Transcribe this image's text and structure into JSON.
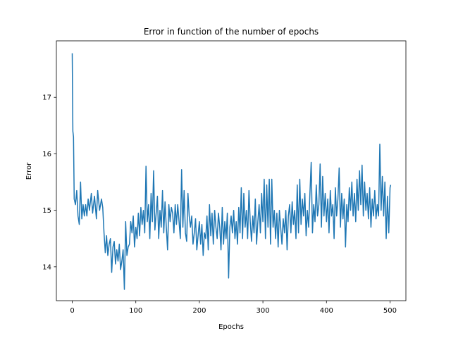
{
  "chart_data": {
    "type": "line",
    "title": "Error in function of the number of epochs",
    "xlabel": "Epochs",
    "ylabel": "Error",
    "xlim": [
      -25,
      525
    ],
    "ylim": [
      13.4,
      18.0
    ],
    "grid": false,
    "x_ticks": [
      0,
      100,
      200,
      300,
      400,
      500
    ],
    "y_ticks": [
      14,
      15,
      16,
      17
    ],
    "series_color": "#1f77b4",
    "series": [
      {
        "values": [
          [
            0,
            17.78
          ],
          [
            1,
            16.4
          ],
          [
            2,
            16.3
          ],
          [
            3,
            15.2
          ],
          [
            5,
            15.1
          ],
          [
            7,
            15.35
          ],
          [
            9,
            14.9
          ],
          [
            11,
            14.75
          ],
          [
            13,
            15.5
          ],
          [
            15,
            14.85
          ],
          [
            17,
            15.1
          ],
          [
            19,
            14.9
          ],
          [
            21,
            15.1
          ],
          [
            23,
            14.9
          ],
          [
            25,
            15.2
          ],
          [
            27,
            15.0
          ],
          [
            30,
            15.3
          ],
          [
            32,
            14.95
          ],
          [
            35,
            15.25
          ],
          [
            38,
            14.85
          ],
          [
            40,
            15.35
          ],
          [
            43,
            15.0
          ],
          [
            46,
            15.2
          ],
          [
            48,
            15.05
          ],
          [
            50,
            14.6
          ],
          [
            52,
            14.25
          ],
          [
            54,
            14.55
          ],
          [
            56,
            14.2
          ],
          [
            58,
            14.4
          ],
          [
            60,
            14.5
          ],
          [
            62,
            13.9
          ],
          [
            64,
            14.35
          ],
          [
            66,
            14.45
          ],
          [
            68,
            14.05
          ],
          [
            70,
            14.3
          ],
          [
            72,
            14.1
          ],
          [
            74,
            14.4
          ],
          [
            76,
            13.95
          ],
          [
            78,
            14.1
          ],
          [
            80,
            14.3
          ],
          [
            82,
            13.6
          ],
          [
            84,
            14.8
          ],
          [
            86,
            14.2
          ],
          [
            88,
            14.35
          ],
          [
            90,
            14.4
          ],
          [
            92,
            14.8
          ],
          [
            94,
            14.6
          ],
          [
            96,
            14.9
          ],
          [
            98,
            14.35
          ],
          [
            100,
            14.7
          ],
          [
            102,
            14.5
          ],
          [
            104,
            14.95
          ],
          [
            106,
            14.55
          ],
          [
            108,
            15.05
          ],
          [
            110,
            14.75
          ],
          [
            112,
            15.0
          ],
          [
            114,
            14.6
          ],
          [
            116,
            15.78
          ],
          [
            118,
            14.8
          ],
          [
            120,
            15.1
          ],
          [
            122,
            14.5
          ],
          [
            124,
            15.3
          ],
          [
            126,
            14.8
          ],
          [
            128,
            15.7
          ],
          [
            130,
            14.65
          ],
          [
            132,
            14.95
          ],
          [
            134,
            15.25
          ],
          [
            136,
            14.5
          ],
          [
            138,
            15.0
          ],
          [
            140,
            14.7
          ],
          [
            142,
            15.35
          ],
          [
            144,
            14.6
          ],
          [
            146,
            15.15
          ],
          [
            148,
            14.7
          ],
          [
            150,
            14.3
          ],
          [
            152,
            15.1
          ],
          [
            154,
            14.8
          ],
          [
            156,
            15.05
          ],
          [
            158,
            14.95
          ],
          [
            160,
            14.6
          ],
          [
            162,
            15.1
          ],
          [
            164,
            14.75
          ],
          [
            166,
            15.1
          ],
          [
            168,
            14.8
          ],
          [
            170,
            14.5
          ],
          [
            172,
            15.72
          ],
          [
            174,
            14.7
          ],
          [
            176,
            15.35
          ],
          [
            178,
            14.6
          ],
          [
            180,
            14.45
          ],
          [
            182,
            15.3
          ],
          [
            184,
            14.9
          ],
          [
            186,
            14.7
          ],
          [
            188,
            14.9
          ],
          [
            190,
            14.4
          ],
          [
            192,
            14.6
          ],
          [
            194,
            14.85
          ],
          [
            196,
            14.3
          ],
          [
            198,
            14.55
          ],
          [
            200,
            14.8
          ],
          [
            202,
            14.4
          ],
          [
            204,
            14.75
          ],
          [
            206,
            14.2
          ],
          [
            208,
            14.6
          ],
          [
            210,
            14.5
          ],
          [
            212,
            14.9
          ],
          [
            214,
            14.3
          ],
          [
            216,
            15.1
          ],
          [
            218,
            14.55
          ],
          [
            220,
            14.95
          ],
          [
            222,
            14.4
          ],
          [
            224,
            15.0
          ],
          [
            226,
            14.7
          ],
          [
            228,
            14.5
          ],
          [
            230,
            14.95
          ],
          [
            232,
            14.7
          ],
          [
            234,
            14.3
          ],
          [
            236,
            15.05
          ],
          [
            238,
            14.4
          ],
          [
            240,
            14.8
          ],
          [
            242,
            14.5
          ],
          [
            244,
            14.95
          ],
          [
            246,
            13.8
          ],
          [
            248,
            14.7
          ],
          [
            250,
            14.9
          ],
          [
            252,
            14.6
          ],
          [
            254,
            15.0
          ],
          [
            256,
            14.5
          ],
          [
            258,
            14.8
          ],
          [
            260,
            14.4
          ],
          [
            262,
            15.05
          ],
          [
            264,
            14.6
          ],
          [
            266,
            15.4
          ],
          [
            268,
            14.5
          ],
          [
            270,
            15.3
          ],
          [
            272,
            14.7
          ],
          [
            274,
            15.0
          ],
          [
            276,
            14.5
          ],
          [
            278,
            15.35
          ],
          [
            280,
            14.8
          ],
          [
            282,
            14.45
          ],
          [
            284,
            14.9
          ],
          [
            286,
            14.6
          ],
          [
            288,
            15.2
          ],
          [
            290,
            14.4
          ],
          [
            292,
            14.8
          ],
          [
            294,
            15.1
          ],
          [
            296,
            14.6
          ],
          [
            298,
            15.3
          ],
          [
            300,
            14.8
          ],
          [
            302,
            15.55
          ],
          [
            304,
            14.5
          ],
          [
            306,
            15.45
          ],
          [
            308,
            14.7
          ],
          [
            310,
            15.55
          ],
          [
            312,
            14.4
          ],
          [
            314,
            15.55
          ],
          [
            316,
            14.7
          ],
          [
            318,
            15.0
          ],
          [
            320,
            14.5
          ],
          [
            322,
            14.95
          ],
          [
            324,
            14.35
          ],
          [
            326,
            15.0
          ],
          [
            328,
            14.7
          ],
          [
            330,
            14.4
          ],
          [
            332,
            14.85
          ],
          [
            334,
            14.6
          ],
          [
            336,
            15.0
          ],
          [
            338,
            14.3
          ],
          [
            340,
            14.9
          ],
          [
            342,
            15.1
          ],
          [
            344,
            14.6
          ],
          [
            346,
            15.15
          ],
          [
            348,
            14.75
          ],
          [
            350,
            15.0
          ],
          [
            352,
            14.5
          ],
          [
            354,
            15.45
          ],
          [
            356,
            14.6
          ],
          [
            358,
            15.55
          ],
          [
            360,
            14.75
          ],
          [
            362,
            15.2
          ],
          [
            364,
            14.9
          ],
          [
            366,
            15.3
          ],
          [
            368,
            14.55
          ],
          [
            370,
            15.0
          ],
          [
            372,
            14.7
          ],
          [
            374,
            15.3
          ],
          [
            376,
            15.85
          ],
          [
            378,
            14.6
          ],
          [
            380,
            15.1
          ],
          [
            382,
            14.8
          ],
          [
            384,
            15.45
          ],
          [
            386,
            14.9
          ],
          [
            388,
            15.1
          ],
          [
            390,
            15.82
          ],
          [
            392,
            14.7
          ],
          [
            394,
            15.6
          ],
          [
            396,
            14.9
          ],
          [
            398,
            15.3
          ],
          [
            400,
            14.8
          ],
          [
            402,
            15.2
          ],
          [
            404,
            14.6
          ],
          [
            406,
            15.35
          ],
          [
            408,
            14.9
          ],
          [
            410,
            15.1
          ],
          [
            412,
            14.5
          ],
          [
            414,
            15.4
          ],
          [
            416,
            14.9
          ],
          [
            418,
            15.2
          ],
          [
            420,
            15.75
          ],
          [
            422,
            14.7
          ],
          [
            424,
            15.3
          ],
          [
            426,
            14.85
          ],
          [
            428,
            15.2
          ],
          [
            430,
            14.35
          ],
          [
            432,
            15.1
          ],
          [
            434,
            14.8
          ],
          [
            436,
            15.4
          ],
          [
            438,
            15.0
          ],
          [
            440,
            15.5
          ],
          [
            442,
            14.9
          ],
          [
            444,
            15.3
          ],
          [
            446,
            14.8
          ],
          [
            448,
            15.55
          ],
          [
            450,
            15.0
          ],
          [
            452,
            15.7
          ],
          [
            454,
            15.1
          ],
          [
            456,
            15.8
          ],
          [
            458,
            14.9
          ],
          [
            460,
            15.5
          ],
          [
            462,
            15.0
          ],
          [
            464,
            15.3
          ],
          [
            466,
            14.85
          ],
          [
            468,
            15.4
          ],
          [
            470,
            14.7
          ],
          [
            472,
            15.2
          ],
          [
            474,
            14.9
          ],
          [
            476,
            15.35
          ],
          [
            478,
            14.85
          ],
          [
            480,
            15.1
          ],
          [
            482,
            14.9
          ],
          [
            484,
            16.17
          ],
          [
            486,
            15.0
          ],
          [
            488,
            15.6
          ],
          [
            490,
            14.9
          ],
          [
            492,
            15.5
          ],
          [
            494,
            14.5
          ],
          [
            496,
            15.25
          ],
          [
            498,
            14.6
          ],
          [
            500,
            15.4
          ],
          [
            501,
            15.45
          ]
        ]
      }
    ]
  }
}
